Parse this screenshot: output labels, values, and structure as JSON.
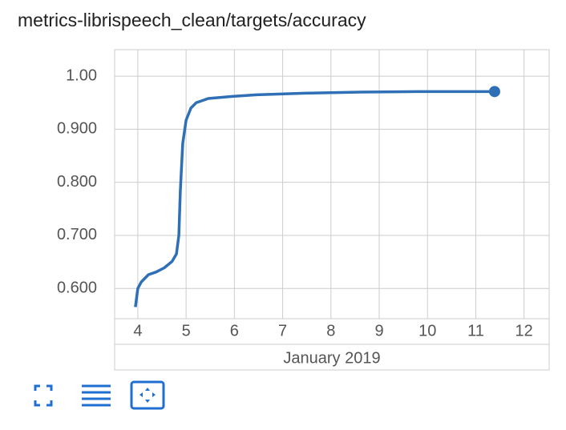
{
  "chart_data": {
    "type": "line",
    "title": "metrics-librispeech_clean/targets/accuracy",
    "x_label": "January 2019",
    "x": [
      3.95,
      4.0,
      4.07,
      4.22,
      4.38,
      4.55,
      4.71,
      4.8,
      4.85,
      4.88,
      4.93,
      5.0,
      5.1,
      5.21,
      5.46,
      5.96,
      6.46,
      7.46,
      8.62,
      9.78,
      11.39
    ],
    "series": [
      {
        "color": "#2f6fb5",
        "values": [
          0.565,
          0.6,
          0.612,
          0.626,
          0.631,
          0.639,
          0.651,
          0.665,
          0.7,
          0.783,
          0.873,
          0.917,
          0.94,
          0.95,
          0.958,
          0.962,
          0.965,
          0.968,
          0.97,
          0.971,
          0.971
        ]
      }
    ],
    "xlim": [
      3.52,
      12.52
    ],
    "xticks": [
      4,
      5,
      6,
      7,
      8,
      9,
      10,
      11,
      12
    ],
    "ylim": [
      0.543,
      1.05
    ],
    "yticks": [
      {
        "value": 0.6,
        "label": "0.600"
      },
      {
        "value": 0.7,
        "label": "0.700"
      },
      {
        "value": 0.8,
        "label": "0.800"
      },
      {
        "value": 0.9,
        "label": "0.900"
      },
      {
        "value": 1.0,
        "label": "1.00"
      }
    ],
    "grid": true
  }
}
